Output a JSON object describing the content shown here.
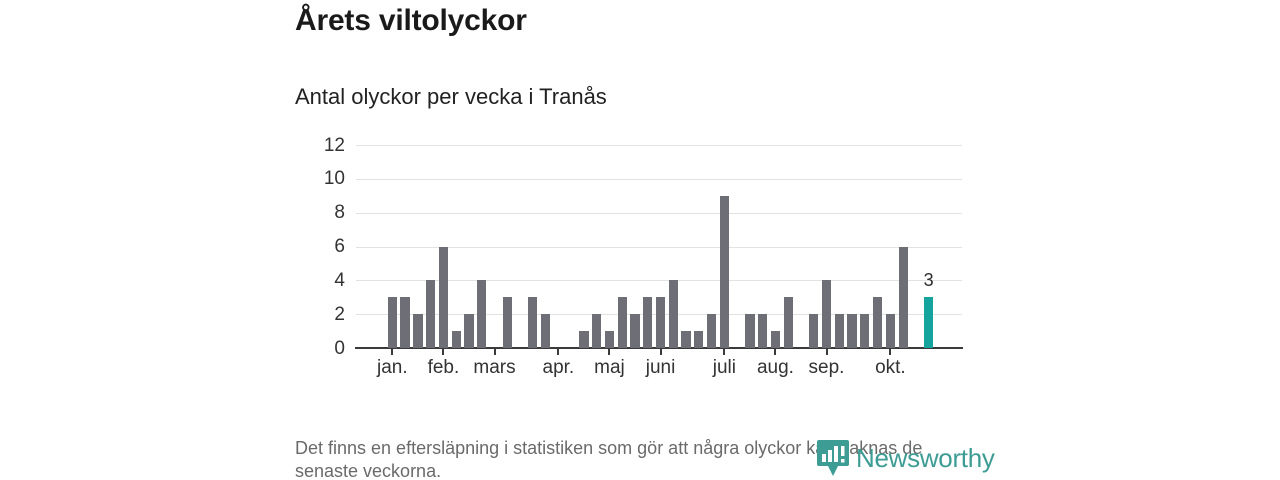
{
  "header": {
    "title": "Årets viltolyckor",
    "subtitle": "Antal olyckor per vecka i Tranås"
  },
  "footer": {
    "line1": "Det finns en eftersläpning i statistiken som gör att några olyckor kan saknas de",
    "line2": "senaste veckorna."
  },
  "logo": {
    "name": "Newsworthy",
    "color": "#3d9c94",
    "icon": "map-pin-bar-chart-icon"
  },
  "chart_data": {
    "type": "bar",
    "title": "Årets viltolyckor",
    "subtitle": "Antal olyckor per vecka i Tranås",
    "x_unit": "vecka",
    "weeks": 43,
    "values": [
      3,
      3,
      2,
      4,
      6,
      1,
      2,
      4,
      0,
      3,
      0,
      3,
      2,
      0,
      0,
      1,
      2,
      1,
      3,
      2,
      3,
      3,
      4,
      1,
      1,
      2,
      9,
      0,
      2,
      2,
      1,
      3,
      0,
      2,
      4,
      2,
      2,
      2,
      3,
      2,
      6,
      0,
      3
    ],
    "ylim": [
      0,
      12
    ],
    "yticks": [
      0,
      2,
      4,
      6,
      8,
      10,
      12
    ],
    "grid": "horizontal",
    "bar_color": "#6e6e76",
    "highlight": {
      "index": 42,
      "label": "3",
      "color": "#14a49d"
    },
    "month_ticks": [
      {
        "label": "jan.",
        "week_index": 0
      },
      {
        "label": "feb.",
        "week_index": 4
      },
      {
        "label": "mars",
        "week_index": 8
      },
      {
        "label": "apr.",
        "week_index": 13
      },
      {
        "label": "maj",
        "week_index": 17
      },
      {
        "label": "juni",
        "week_index": 21
      },
      {
        "label": "juli",
        "week_index": 26
      },
      {
        "label": "aug.",
        "week_index": 30
      },
      {
        "label": "sep.",
        "week_index": 34
      },
      {
        "label": "okt.",
        "week_index": 39
      }
    ],
    "colors": {
      "axis_text": "#333333",
      "gridline": "#e2e2e2",
      "baseline": "#3a3a3a"
    }
  }
}
